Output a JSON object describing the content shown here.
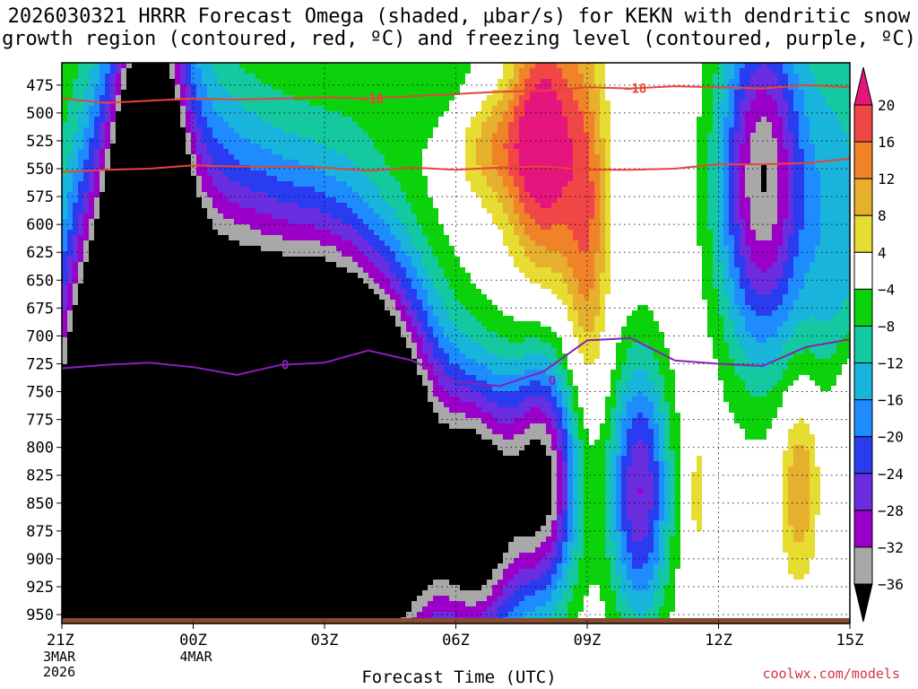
{
  "title": {
    "line1": "2026030321 HRRR Forecast Omega (shaded, μbar/s) for KEKN with dendritic snow",
    "line2": "growth region (contoured, red, ºC) and freezing level (contoured, purple, ºC)"
  },
  "credit": "coolwx.com/models",
  "chart_data": {
    "type": "heatmap",
    "title": "2026030321 HRRR Forecast Omega (shaded, μbar/s) for KEKN with dendritic snow growth region (contoured, red, ºC) and freezing level (contoured, purple, ºC)",
    "xlabel": "Forecast Time (UTC)",
    "ylabel": "",
    "x_range_hours": [
      0,
      18
    ],
    "y_range_mb": [
      958,
      455
    ],
    "y_scale": "linear, pressure increasing downward",
    "x_ticks": [
      {
        "hour": 0,
        "label": "21Z",
        "sub1": "3MAR",
        "sub2": "2026"
      },
      {
        "hour": 3,
        "label": "00Z",
        "sub1": "4MAR",
        "sub2": ""
      },
      {
        "hour": 6,
        "label": "03Z",
        "sub1": "",
        "sub2": ""
      },
      {
        "hour": 9,
        "label": "06Z",
        "sub1": "",
        "sub2": ""
      },
      {
        "hour": 12,
        "label": "09Z",
        "sub1": "",
        "sub2": ""
      },
      {
        "hour": 15,
        "label": "12Z",
        "sub1": "",
        "sub2": ""
      },
      {
        "hour": 18,
        "label": "15Z",
        "sub1": "",
        "sub2": ""
      }
    ],
    "y_ticks": [
      475,
      500,
      525,
      550,
      575,
      600,
      625,
      650,
      675,
      700,
      725,
      750,
      775,
      800,
      825,
      850,
      875,
      900,
      925,
      950
    ],
    "grid": true,
    "colorbar": {
      "placement": "right",
      "labels": [
        "20",
        "16",
        "12",
        "8",
        "4",
        "−4",
        "−8",
        "−12",
        "−16",
        "−20",
        "−24",
        "−28",
        "−32",
        "−36"
      ],
      "levels": [
        -36,
        -32,
        -28,
        -24,
        -20,
        -16,
        -12,
        -8,
        -4,
        4,
        8,
        12,
        16,
        20
      ],
      "colors": {
        "lt_-36": "#000000",
        "-36_-32": "#a8a8a8",
        "-32_-28": "#9b00c8",
        "-28_-24": "#6a2de0",
        "-24_-20": "#2a3cf0",
        "-20_-16": "#1e8cff",
        "-16_-12": "#19b4dc",
        "-12_-8": "#14c8a0",
        "-8_-4": "#0cd20c",
        "-4_4": "#ffffff",
        "4_8": "#e6dc32",
        "8_12": "#e6af2d",
        "12_16": "#f08228",
        "16_20": "#f04646",
        "gt_20": "#e6147d"
      }
    },
    "omega_sources": [
      {
        "t": 0.2,
        "p": 860,
        "v": -12,
        "st": 0.8,
        "sp": 150
      },
      {
        "t": 0.8,
        "p": 870,
        "v": -50,
        "st": 1.2,
        "sp": 260
      },
      {
        "t": 2.0,
        "p": 760,
        "v": -55,
        "st": 1.3,
        "sp": 300
      },
      {
        "t": 2.0,
        "p": 600,
        "v": -38,
        "st": 0.7,
        "sp": 200
      },
      {
        "t": 4.0,
        "p": 800,
        "v": -55,
        "st": 1.5,
        "sp": 230
      },
      {
        "t": 6.0,
        "p": 800,
        "v": -55,
        "st": 1.4,
        "sp": 200
      },
      {
        "t": 7.5,
        "p": 830,
        "v": -52,
        "st": 1.3,
        "sp": 170
      },
      {
        "t": 9.5,
        "p": 860,
        "v": -44,
        "st": 1.0,
        "sp": 120
      },
      {
        "t": 11.0,
        "p": 830,
        "v": -36,
        "st": 0.8,
        "sp": 110
      },
      {
        "t": 13.2,
        "p": 840,
        "v": -28,
        "st": 0.7,
        "sp": 120
      },
      {
        "t": 16.0,
        "p": 560,
        "v": -36,
        "st": 1.0,
        "sp": 160
      },
      {
        "t": 17.8,
        "p": 640,
        "v": -14,
        "st": 0.9,
        "sp": 250
      },
      {
        "t": 9.0,
        "p": 470,
        "v": -8,
        "st": 2.0,
        "sp": 60
      },
      {
        "t": 11.0,
        "p": 520,
        "v": 26,
        "st": 0.8,
        "sp": 120
      },
      {
        "t": 12.0,
        "p": 600,
        "v": 14,
        "st": 0.5,
        "sp": 160
      },
      {
        "t": 9.8,
        "p": 520,
        "v": 12,
        "st": 0.9,
        "sp": 60
      },
      {
        "t": 14.5,
        "p": 840,
        "v": 6,
        "st": 0.3,
        "sp": 80
      },
      {
        "t": 16.9,
        "p": 830,
        "v": 15,
        "st": 0.5,
        "sp": 90
      },
      {
        "t": 18.0,
        "p": 770,
        "v": 12,
        "st": 0.6,
        "sp": 80
      }
    ],
    "snow_growth_contours": [
      {
        "label": "−18",
        "upper_p": [
          [
            0,
            487
          ],
          [
            1,
            491
          ],
          [
            2,
            489
          ],
          [
            3,
            487
          ],
          [
            4,
            488
          ],
          [
            5,
            487
          ],
          [
            6,
            486
          ],
          [
            7,
            487
          ],
          [
            8,
            485
          ],
          [
            9,
            483
          ],
          [
            10,
            481
          ],
          [
            11,
            480
          ],
          [
            12,
            477
          ],
          [
            13,
            478
          ],
          [
            14,
            476
          ],
          [
            15,
            477
          ],
          [
            16,
            478
          ],
          [
            17,
            475
          ],
          [
            18,
            477
          ]
        ]
      },
      {
        "label": "",
        "lower_p": [
          [
            0,
            553
          ],
          [
            1,
            551
          ],
          [
            2,
            550
          ],
          [
            3,
            547
          ],
          [
            4,
            548
          ],
          [
            5,
            548
          ],
          [
            6,
            549
          ],
          [
            7,
            552
          ],
          [
            8,
            549
          ],
          [
            9,
            551
          ],
          [
            10,
            549
          ],
          [
            11,
            548
          ],
          [
            12,
            551
          ],
          [
            13,
            551
          ],
          [
            14,
            550
          ],
          [
            15,
            546
          ],
          [
            16,
            546
          ],
          [
            17,
            545
          ],
          [
            18,
            541
          ]
        ]
      }
    ],
    "freezing_level_contour": {
      "label": "0",
      "points": [
        [
          0,
          729
        ],
        [
          1,
          726
        ],
        [
          2,
          724
        ],
        [
          3,
          728
        ],
        [
          4,
          735
        ],
        [
          5,
          726
        ],
        [
          6,
          724
        ],
        [
          7,
          713
        ],
        [
          8,
          722
        ],
        [
          9,
          741
        ],
        [
          10,
          745
        ],
        [
          11,
          732
        ],
        [
          12,
          704
        ],
        [
          13,
          702
        ],
        [
          14,
          722
        ],
        [
          15,
          725
        ],
        [
          16,
          727
        ],
        [
          17,
          710
        ],
        [
          18,
          703
        ]
      ]
    }
  }
}
